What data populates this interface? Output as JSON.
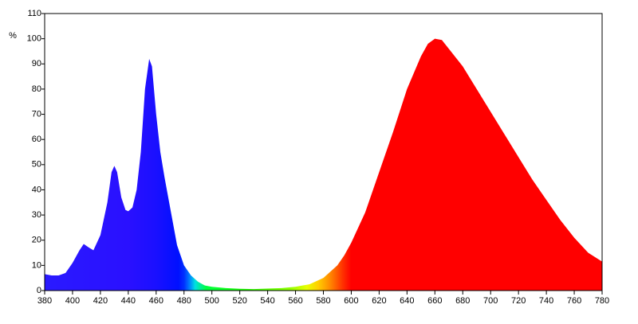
{
  "chart_data": {
    "type": "area",
    "ylabel": "%",
    "x": [
      380,
      385,
      390,
      395,
      400,
      405,
      408,
      412,
      415,
      420,
      425,
      428,
      430,
      432,
      435,
      438,
      440,
      443,
      446,
      449,
      452,
      455,
      457,
      460,
      463,
      466,
      470,
      475,
      480,
      485,
      490,
      495,
      500,
      510,
      520,
      530,
      540,
      550,
      560,
      570,
      580,
      590,
      595,
      600,
      610,
      620,
      630,
      640,
      650,
      655,
      660,
      665,
      670,
      680,
      690,
      700,
      710,
      720,
      730,
      740,
      750,
      760,
      770,
      780
    ],
    "values": [
      6.5,
      6,
      6,
      7,
      11,
      16,
      18.5,
      17,
      16,
      22,
      35,
      47,
      49.5,
      47,
      37,
      32,
      31.5,
      33,
      40,
      55,
      80,
      92,
      89,
      70,
      55,
      45,
      33,
      18,
      10,
      6,
      3.5,
      2,
      1.5,
      1,
      0.7,
      0.6,
      0.8,
      1,
      1.5,
      2.5,
      5,
      10,
      14,
      19,
      31,
      47,
      63,
      80,
      93,
      98,
      100,
      99.5,
      96,
      89,
      80,
      71,
      62,
      53,
      44,
      36,
      28,
      21,
      15,
      11.5
    ],
    "xlim": [
      380,
      780
    ],
    "xticks": [
      380,
      400,
      420,
      440,
      460,
      480,
      500,
      520,
      540,
      560,
      580,
      600,
      620,
      640,
      660,
      680,
      700,
      720,
      740,
      760,
      780
    ],
    "ylim": [
      0,
      110
    ],
    "yticks": [
      0,
      10,
      20,
      30,
      40,
      50,
      60,
      70,
      80,
      90,
      100,
      110
    ]
  }
}
